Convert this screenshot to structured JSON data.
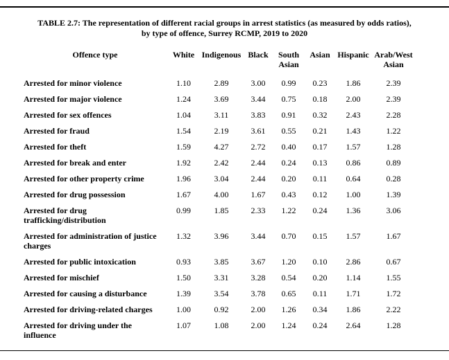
{
  "title": {
    "line1": "TABLE 2.7: The representation of different racial groups in arrest statistics (as measured by odds ratios),",
    "line2": "by type of offence, Surrey RCMP, 2019 to 2020"
  },
  "table": {
    "type": "table",
    "columns": [
      "Offence type",
      "White",
      "Indigenous",
      "Black",
      "South Asian",
      "Asian",
      "Hispanic",
      "Arab/West Asian"
    ],
    "rows": [
      {
        "label": "Arrested for minor violence",
        "values": [
          "1.10",
          "2.89",
          "3.00",
          "0.99",
          "0.23",
          "1.86",
          "2.39"
        ]
      },
      {
        "label": "Arrested for major violence",
        "values": [
          "1.24",
          "3.69",
          "3.44",
          "0.75",
          "0.18",
          "2.00",
          "2.39"
        ]
      },
      {
        "label": "Arrested for sex offences",
        "values": [
          "1.04",
          "3.11",
          "3.83",
          "0.91",
          "0.32",
          "2.43",
          "2.28"
        ]
      },
      {
        "label": "Arrested for fraud",
        "values": [
          "1.54",
          "2.19",
          "3.61",
          "0.55",
          "0.21",
          "1.43",
          "1.22"
        ]
      },
      {
        "label": "Arrested for theft",
        "values": [
          "1.59",
          "4.27",
          "2.72",
          "0.40",
          "0.17",
          "1.57",
          "1.28"
        ]
      },
      {
        "label": "Arrested for break and enter",
        "values": [
          "1.92",
          "2.42",
          "2.44",
          "0.24",
          "0.13",
          "0.86",
          "0.89"
        ]
      },
      {
        "label": "Arrested for other property crime",
        "values": [
          "1.96",
          "3.04",
          "2.44",
          "0.20",
          "0.11",
          "0.64",
          "0.28"
        ]
      },
      {
        "label": "Arrested for drug possession",
        "values": [
          "1.67",
          "4.00",
          "1.67",
          "0.43",
          "0.12",
          "1.00",
          "1.39"
        ]
      },
      {
        "label": "Arrested for drug trafficking/distribution",
        "values": [
          "0.99",
          "1.85",
          "2.33",
          "1.22",
          "0.24",
          "1.36",
          "3.06"
        ]
      },
      {
        "label": "Arrested for administration of justice charges",
        "values": [
          "1.32",
          "3.96",
          "3.44",
          "0.70",
          "0.15",
          "1.57",
          "1.67"
        ]
      },
      {
        "label": "Arrested for public intoxication",
        "values": [
          "0.93",
          "3.85",
          "3.67",
          "1.20",
          "0.10",
          "2.86",
          "0.67"
        ]
      },
      {
        "label": "Arrested for mischief",
        "values": [
          "1.50",
          "3.31",
          "3.28",
          "0.54",
          "0.20",
          "1.14",
          "1.55"
        ]
      },
      {
        "label": "Arrested for causing a disturbance",
        "values": [
          "1.39",
          "3.54",
          "3.78",
          "0.65",
          "0.11",
          "1.71",
          "1.72"
        ]
      },
      {
        "label": "Arrested for driving-related charges",
        "values": [
          "1.00",
          "0.92",
          "2.00",
          "1.26",
          "0.34",
          "1.86",
          "2.22"
        ]
      },
      {
        "label": "Arrested for driving under the influence",
        "values": [
          "1.07",
          "1.08",
          "2.00",
          "1.24",
          "0.24",
          "2.64",
          "1.28"
        ]
      }
    ]
  }
}
